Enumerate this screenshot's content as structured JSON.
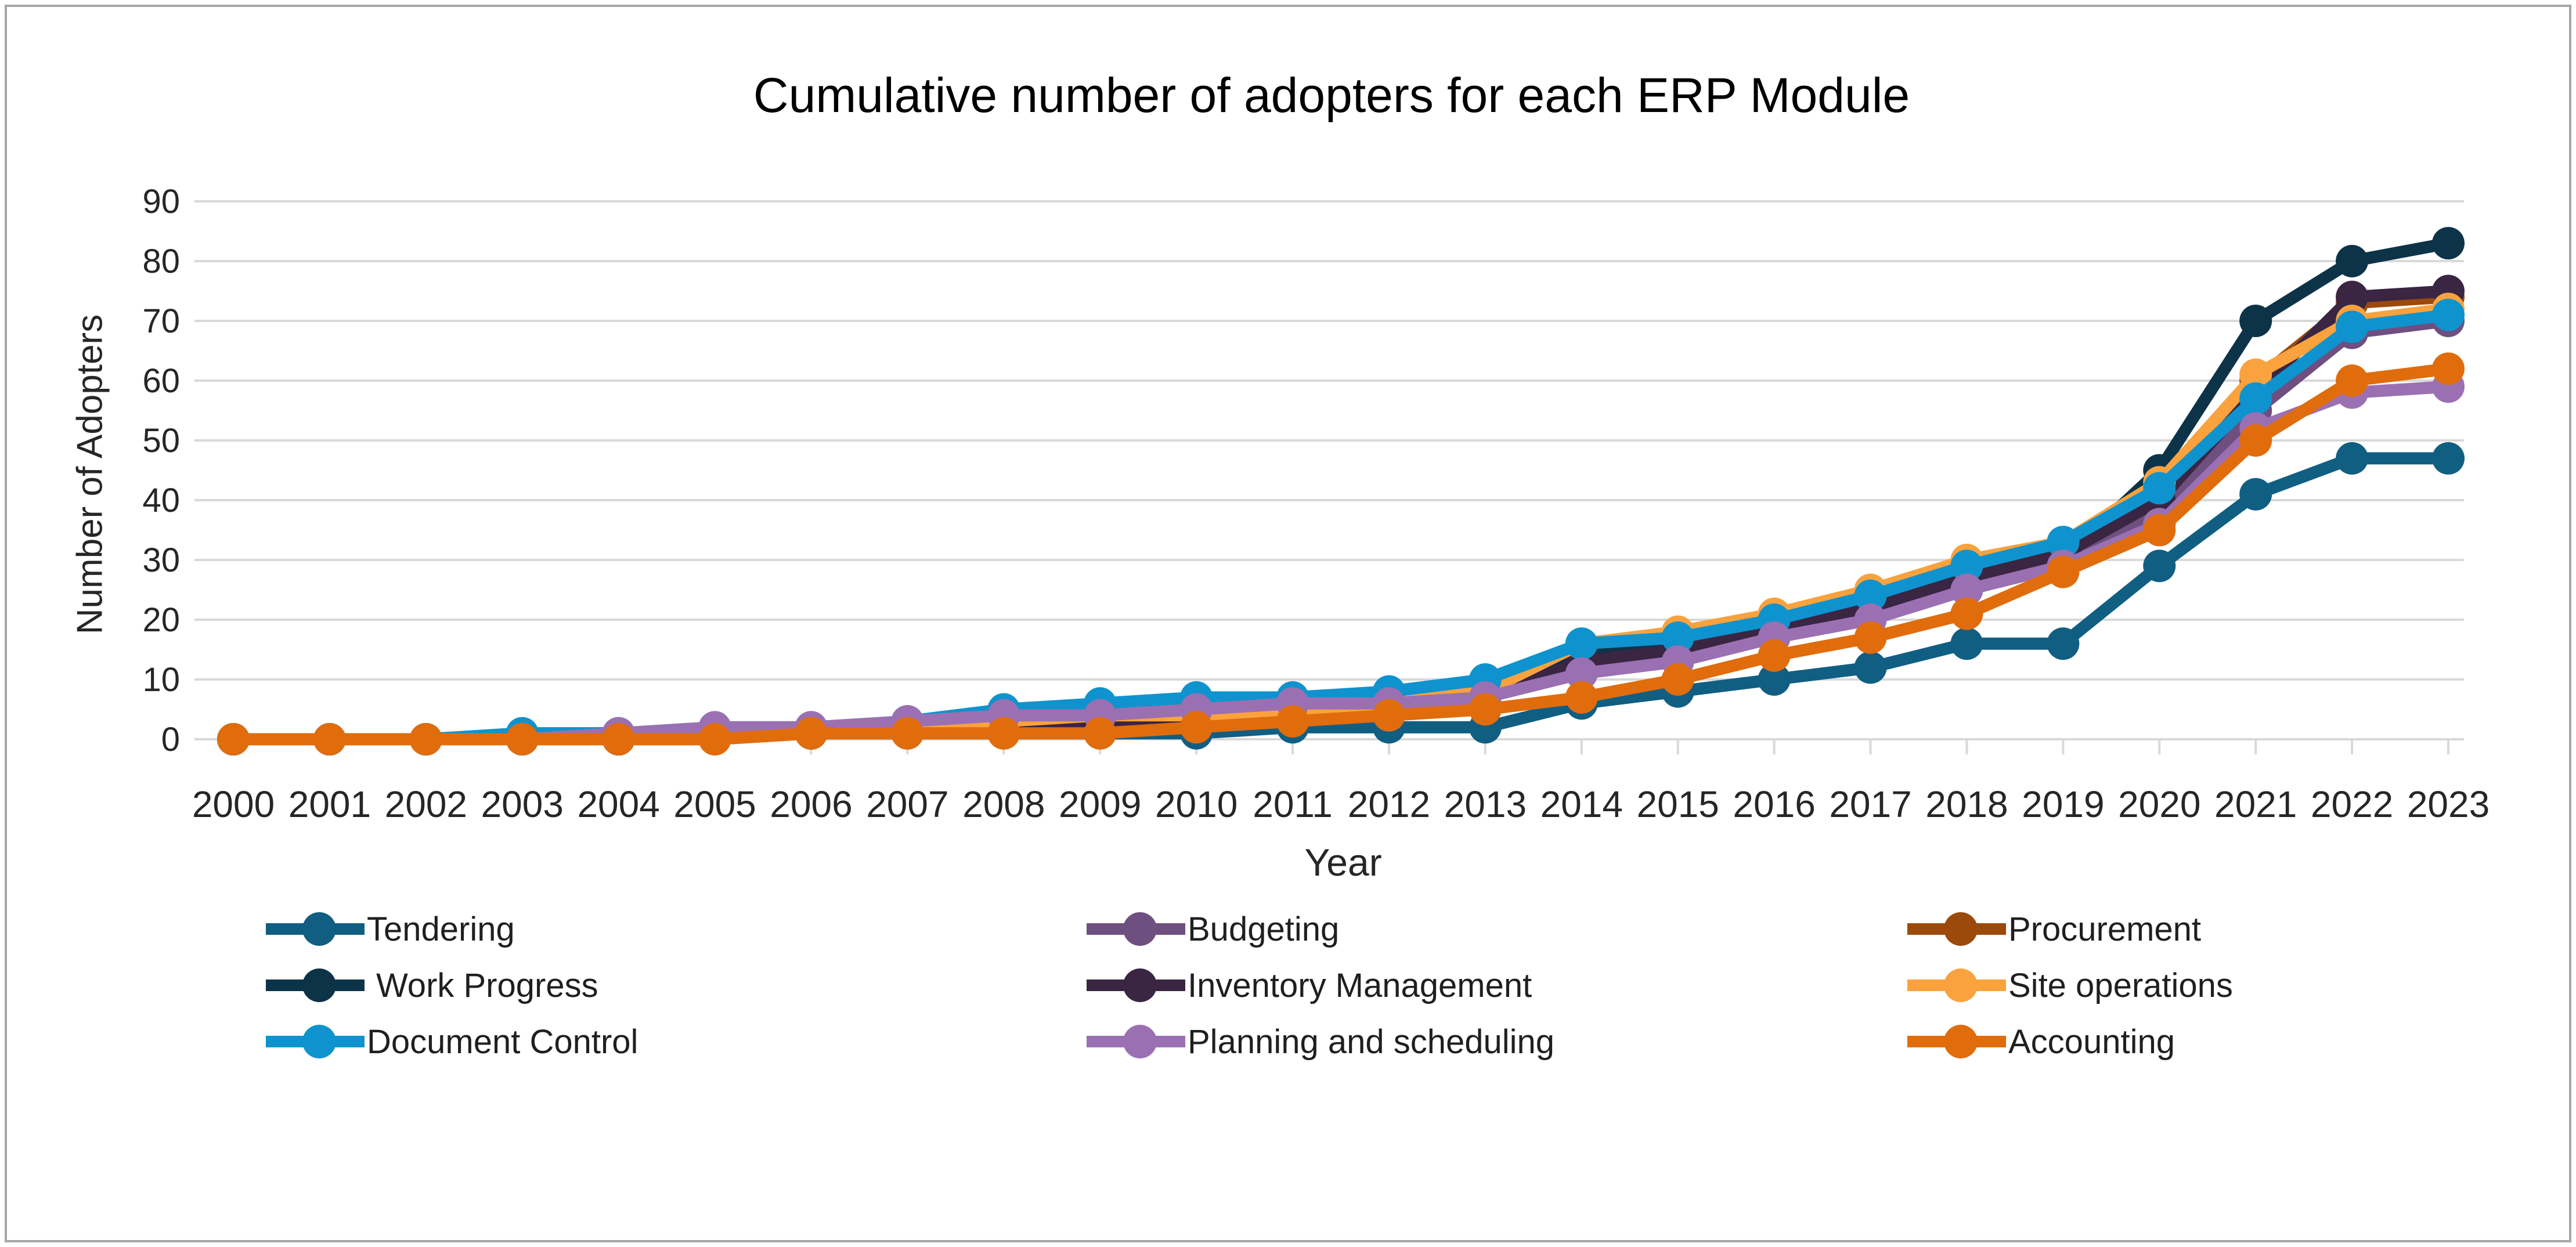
{
  "colors": {
    "background": "#FFFFFF",
    "border": "#A6A6A6",
    "grid": "#D9D9D9",
    "axis": "#D9D9D9",
    "text": "#262626",
    "title_text": "#000000"
  },
  "chart_data": {
    "type": "line",
    "title": "Cumulative number of adopters for each ERP Module",
    "xlabel": "Year",
    "ylabel": "Number of Adopters",
    "ylim": [
      0,
      90
    ],
    "ytick_step": 10,
    "grid": true,
    "marker": "circle",
    "legend_position": "bottom",
    "categories": [
      2000,
      2001,
      2002,
      2003,
      2004,
      2005,
      2006,
      2007,
      2008,
      2009,
      2010,
      2011,
      2012,
      2013,
      2014,
      2015,
      2016,
      2017,
      2018,
      2019,
      2020,
      2021,
      2022,
      2023
    ],
    "series": [
      {
        "name": "Tendering",
        "color": "#115E83",
        "values": [
          0,
          0,
          0,
          1,
          1,
          1,
          1,
          1,
          1,
          1,
          1,
          2,
          2,
          2,
          6,
          8,
          10,
          12,
          16,
          16,
          29,
          41,
          47,
          47
        ]
      },
      {
        "name": "Budgeting",
        "color": "#6F4E80",
        "values": [
          0,
          0,
          0,
          0,
          0,
          1,
          1,
          2,
          2,
          3,
          4,
          5,
          6,
          7,
          12,
          14,
          17,
          21,
          26,
          30,
          38,
          55,
          68,
          70
        ]
      },
      {
        "name": "Procurement",
        "color": "#9B4A0C",
        "values": [
          0,
          0,
          0,
          0,
          0,
          1,
          1,
          2,
          3,
          4,
          5,
          6,
          7,
          8,
          14,
          15,
          18,
          22,
          27,
          31,
          41,
          60,
          73,
          74
        ]
      },
      {
        "name": " Work Progress",
        "color": "#0D3349",
        "values": [
          0,
          0,
          0,
          0,
          0,
          1,
          1,
          2,
          3,
          3,
          4,
          5,
          6,
          8,
          14,
          16,
          18,
          21,
          25,
          30,
          45,
          70,
          80,
          83
        ]
      },
      {
        "name": "Inventory Management",
        "color": "#3A2543",
        "values": [
          0,
          0,
          0,
          0,
          0,
          1,
          1,
          2,
          2,
          3,
          4,
          5,
          6,
          7,
          13,
          15,
          18,
          22,
          27,
          31,
          40,
          58,
          74,
          75
        ]
      },
      {
        "name": "Site operations",
        "color": "#FAA23D",
        "values": [
          0,
          0,
          0,
          0,
          1,
          1,
          2,
          2,
          3,
          4,
          4,
          5,
          6,
          8,
          16,
          18,
          21,
          25,
          30,
          33,
          43,
          61,
          70,
          72
        ]
      },
      {
        "name": "Document Control",
        "color": "#0E93CE",
        "values": [
          0,
          0,
          0,
          1,
          1,
          2,
          2,
          3,
          5,
          6,
          7,
          7,
          8,
          10,
          16,
          17,
          20,
          24,
          29,
          33,
          42,
          57,
          69,
          71
        ]
      },
      {
        "name": "Planning and scheduling",
        "color": "#9B70B2",
        "values": [
          0,
          0,
          0,
          0,
          1,
          2,
          2,
          3,
          4,
          4,
          5,
          6,
          6,
          7,
          11,
          13,
          17,
          20,
          25,
          29,
          36,
          52,
          58,
          59
        ]
      },
      {
        "name": "Accounting",
        "color": "#E06C0C",
        "values": [
          0,
          0,
          0,
          0,
          0,
          0,
          1,
          1,
          1,
          1,
          2,
          3,
          4,
          5,
          7,
          10,
          14,
          17,
          21,
          28,
          35,
          50,
          60,
          62
        ]
      }
    ]
  }
}
